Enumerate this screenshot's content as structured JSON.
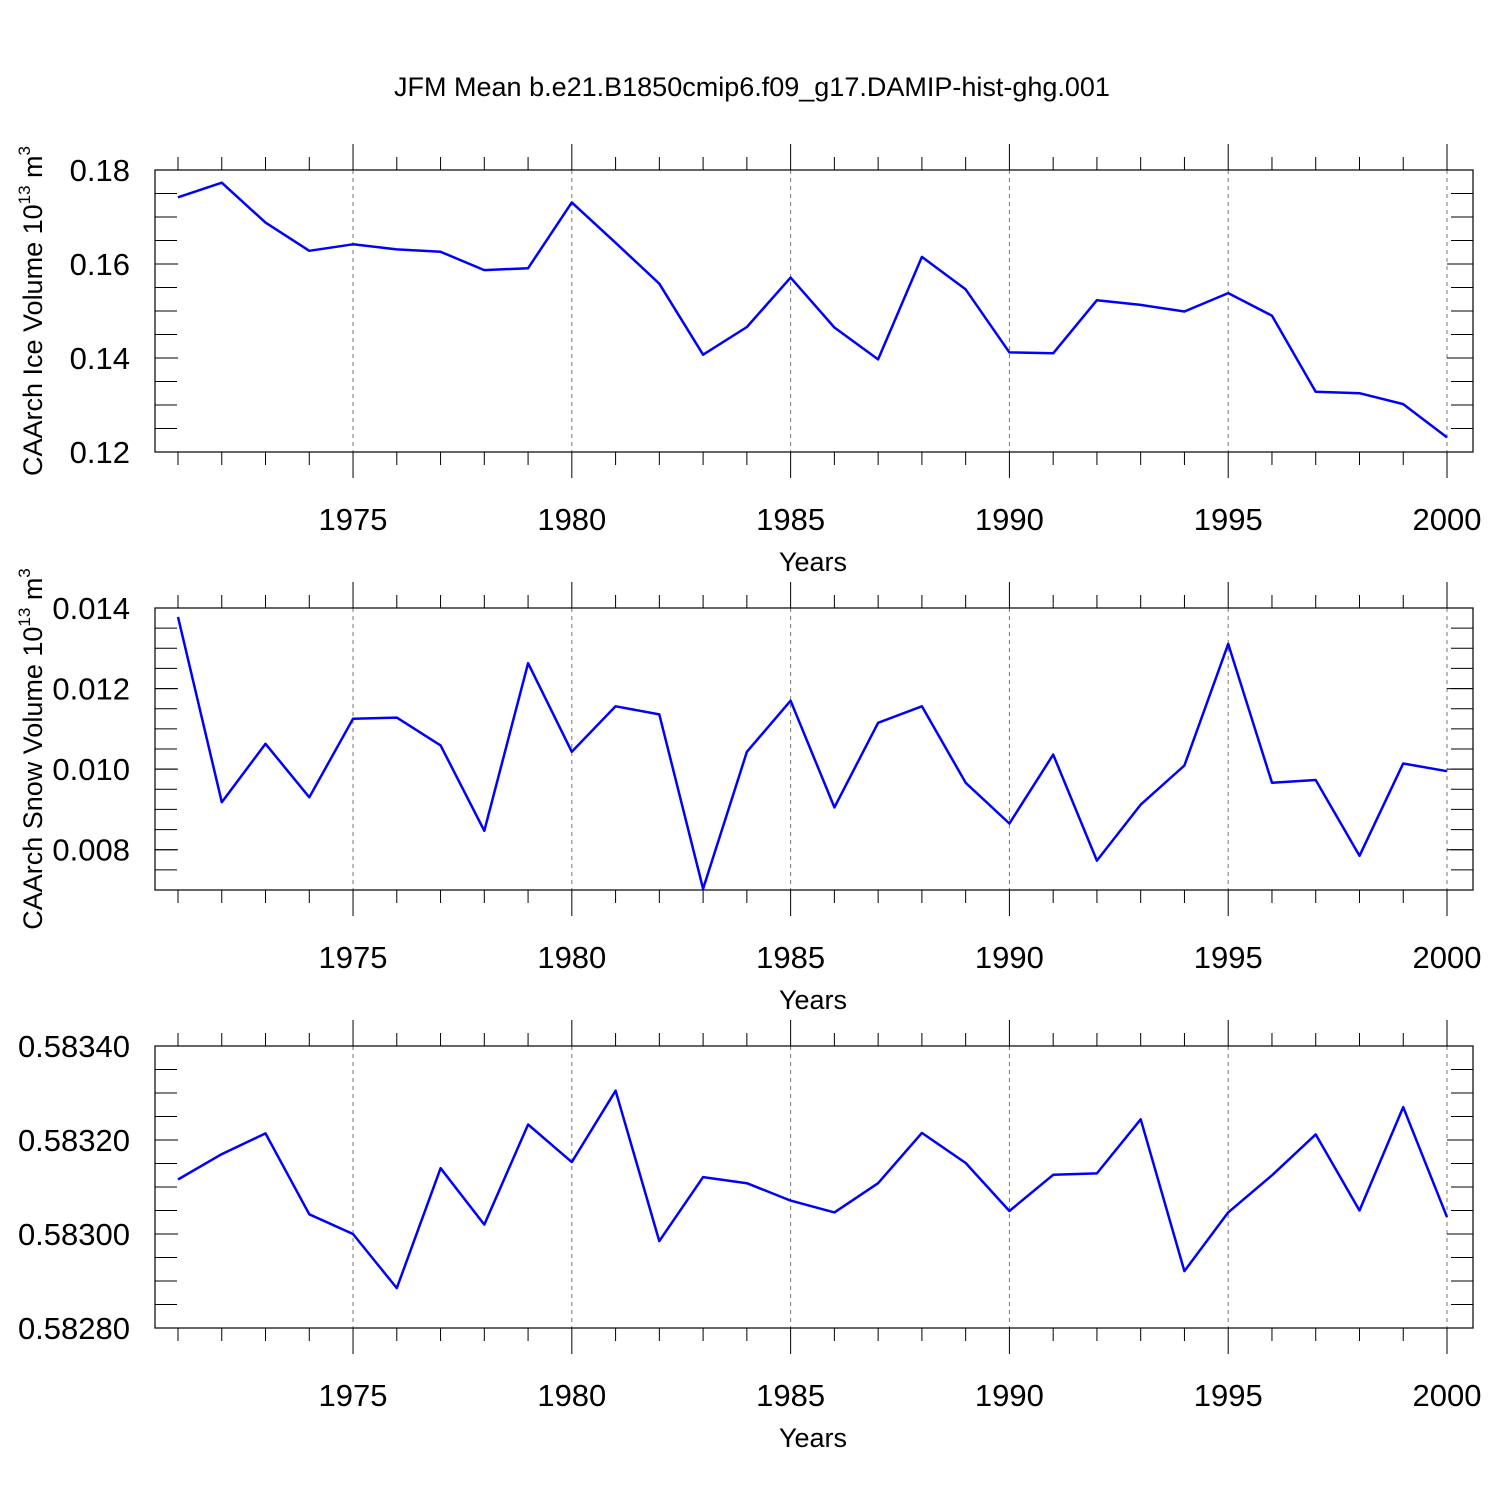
{
  "title": "JFM Mean b.e21.B1850cmip6.f09_g17.DAMIP-hist-ghg.001",
  "chart_data": [
    {
      "type": "line",
      "ylabel_main": "CAArch Ice Volume 10",
      "ylabel_sup": "13",
      "ylabel_unit": " m",
      "ylabel_unit_sup": "3",
      "xlabel": "Years",
      "xlim": [
        1971,
        2000
      ],
      "ylim": [
        0.12,
        0.18
      ],
      "yticks": [
        0.12,
        0.14,
        0.16,
        0.18
      ],
      "ytick_labels": [
        "0.12",
        "0.14",
        "0.16",
        "0.18"
      ],
      "yminor_step": 0.005,
      "xticks": [
        1975,
        1980,
        1985,
        1990,
        1995,
        2000
      ],
      "xtick_labels": [
        "1975",
        "1980",
        "1985",
        "1990",
        "1995",
        "2000"
      ],
      "color": "#0000ff",
      "x": [
        1971,
        1972,
        1973,
        1974,
        1975,
        1976,
        1977,
        1978,
        1979,
        1980,
        1981,
        1982,
        1983,
        1984,
        1985,
        1986,
        1987,
        1988,
        1989,
        1990,
        1991,
        1992,
        1993,
        1994,
        1995,
        1996,
        1997,
        1998,
        1999,
        2000
      ],
      "values": [
        0.1742,
        0.1773,
        0.1688,
        0.1628,
        0.1642,
        0.1631,
        0.1626,
        0.1587,
        0.1591,
        0.1731,
        0.1645,
        0.1558,
        0.1407,
        0.1466,
        0.1571,
        0.1465,
        0.1397,
        0.1615,
        0.1546,
        0.1412,
        0.141,
        0.1523,
        0.1513,
        0.1499,
        0.1538,
        0.149,
        0.1328,
        0.1325,
        0.1302,
        0.1231
      ]
    },
    {
      "type": "line",
      "ylabel_main": "CAArch Snow Volume 10",
      "ylabel_sup": "13",
      "ylabel_unit": " m",
      "ylabel_unit_sup": "3",
      "xlabel": "Years",
      "xlim": [
        1971,
        2000
      ],
      "ylim": [
        0.007,
        0.014
      ],
      "yticks": [
        0.008,
        0.01,
        0.012,
        0.014
      ],
      "ytick_labels": [
        "0.008",
        "0.010",
        "0.012",
        "0.014"
      ],
      "yminor_step": 0.0005,
      "xticks": [
        1975,
        1980,
        1985,
        1990,
        1995,
        2000
      ],
      "xtick_labels": [
        "1975",
        "1980",
        "1985",
        "1990",
        "1995",
        "2000"
      ],
      "color": "#0000ff",
      "x": [
        1971,
        1972,
        1973,
        1974,
        1975,
        1976,
        1977,
        1978,
        1979,
        1980,
        1981,
        1982,
        1983,
        1984,
        1985,
        1986,
        1987,
        1988,
        1989,
        1990,
        1991,
        1992,
        1993,
        1994,
        1995,
        1996,
        1997,
        1998,
        1999,
        2000
      ],
      "values": [
        0.01378,
        0.00918,
        0.01063,
        0.0093,
        0.01125,
        0.01128,
        0.01059,
        0.00847,
        0.01263,
        0.01043,
        0.01156,
        0.01136,
        0.00703,
        0.01043,
        0.0117,
        0.00905,
        0.01115,
        0.01156,
        0.00966,
        0.00865,
        0.01036,
        0.00773,
        0.00912,
        0.01009,
        0.01311,
        0.00966,
        0.00973,
        0.00785,
        0.01014,
        0.00995
      ]
    },
    {
      "type": "line",
      "ylabel_main": "",
      "ylabel_sup": "",
      "ylabel_unit": "",
      "ylabel_unit_sup": "",
      "xlabel": "Years",
      "xlim": [
        1971,
        2000
      ],
      "ylim": [
        0.5828,
        0.5834
      ],
      "yticks": [
        0.5828,
        0.583,
        0.5832,
        0.5834
      ],
      "ytick_labels": [
        "0.58280",
        "0.58300",
        "0.58320",
        "0.58340"
      ],
      "yminor_step": 5e-05,
      "xticks": [
        1975,
        1980,
        1985,
        1990,
        1995,
        2000
      ],
      "xtick_labels": [
        "1975",
        "1980",
        "1985",
        "1990",
        "1995",
        "2000"
      ],
      "color": "#0000ff",
      "x": [
        1971,
        1972,
        1973,
        1974,
        1975,
        1976,
        1977,
        1978,
        1979,
        1980,
        1981,
        1982,
        1983,
        1984,
        1985,
        1986,
        1987,
        1988,
        1989,
        1990,
        1991,
        1992,
        1993,
        1994,
        1995,
        1996,
        1997,
        1998,
        1999,
        2000
      ],
      "values": [
        0.583116,
        0.58317,
        0.583214,
        0.583042,
        0.583,
        0.582885,
        0.58314,
        0.58302,
        0.583233,
        0.583153,
        0.583305,
        0.582985,
        0.583121,
        0.583108,
        0.583071,
        0.583046,
        0.583108,
        0.583215,
        0.583151,
        0.583049,
        0.583126,
        0.583129,
        0.583244,
        0.582921,
        0.583046,
        0.583125,
        0.583212,
        0.58305,
        0.58327,
        0.583036
      ]
    }
  ]
}
